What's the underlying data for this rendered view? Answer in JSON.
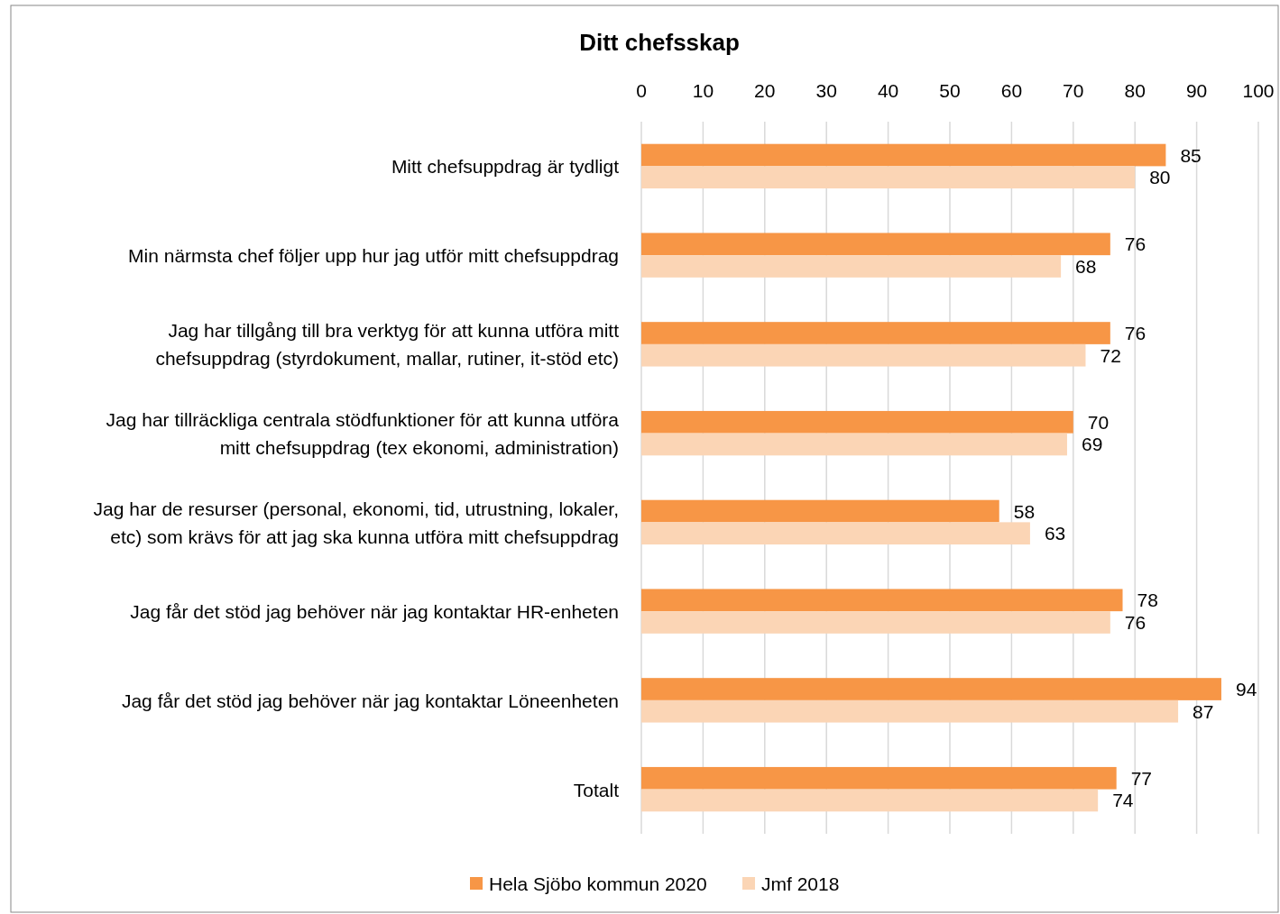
{
  "chart_data": {
    "type": "bar",
    "orientation": "horizontal",
    "title": "Ditt chefsskap",
    "categories": [
      "Mitt chefsuppdrag är tydligt",
      "Min närmsta chef följer upp hur jag utför mitt chefsuppdrag",
      "Jag har tillgång till bra verktyg för att kunna utföra mitt chefsuppdrag (styrdokument, mallar, rutiner, it-stöd etc)",
      "Jag har tillräckliga centrala stödfunktioner för att kunna utföra mitt chefsuppdrag (tex ekonomi, administration)",
      "Jag har de resurser (personal, ekonomi, tid, utrustning, lokaler, etc) som krävs för att jag ska kunna utföra mitt chefsuppdrag",
      "Jag får det stöd jag behöver när jag kontaktar HR-enheten",
      "Jag får det stöd jag behöver när jag kontaktar Löneenheten",
      "Totalt"
    ],
    "series": [
      {
        "name": "Hela Sjöbo kommun 2020",
        "color": "#f79646",
        "values": [
          85,
          76,
          76,
          70,
          58,
          78,
          94,
          77
        ]
      },
      {
        "name": "Jmf 2018",
        "color": "#fbd5b5",
        "values": [
          80,
          68,
          72,
          69,
          63,
          76,
          87,
          74
        ]
      }
    ],
    "xlim": [
      0,
      100
    ],
    "xticks": [
      0,
      10,
      20,
      30,
      40,
      50,
      60,
      70,
      80,
      90,
      100
    ],
    "grid": "x",
    "legend": "bottom",
    "data_labels": true
  }
}
